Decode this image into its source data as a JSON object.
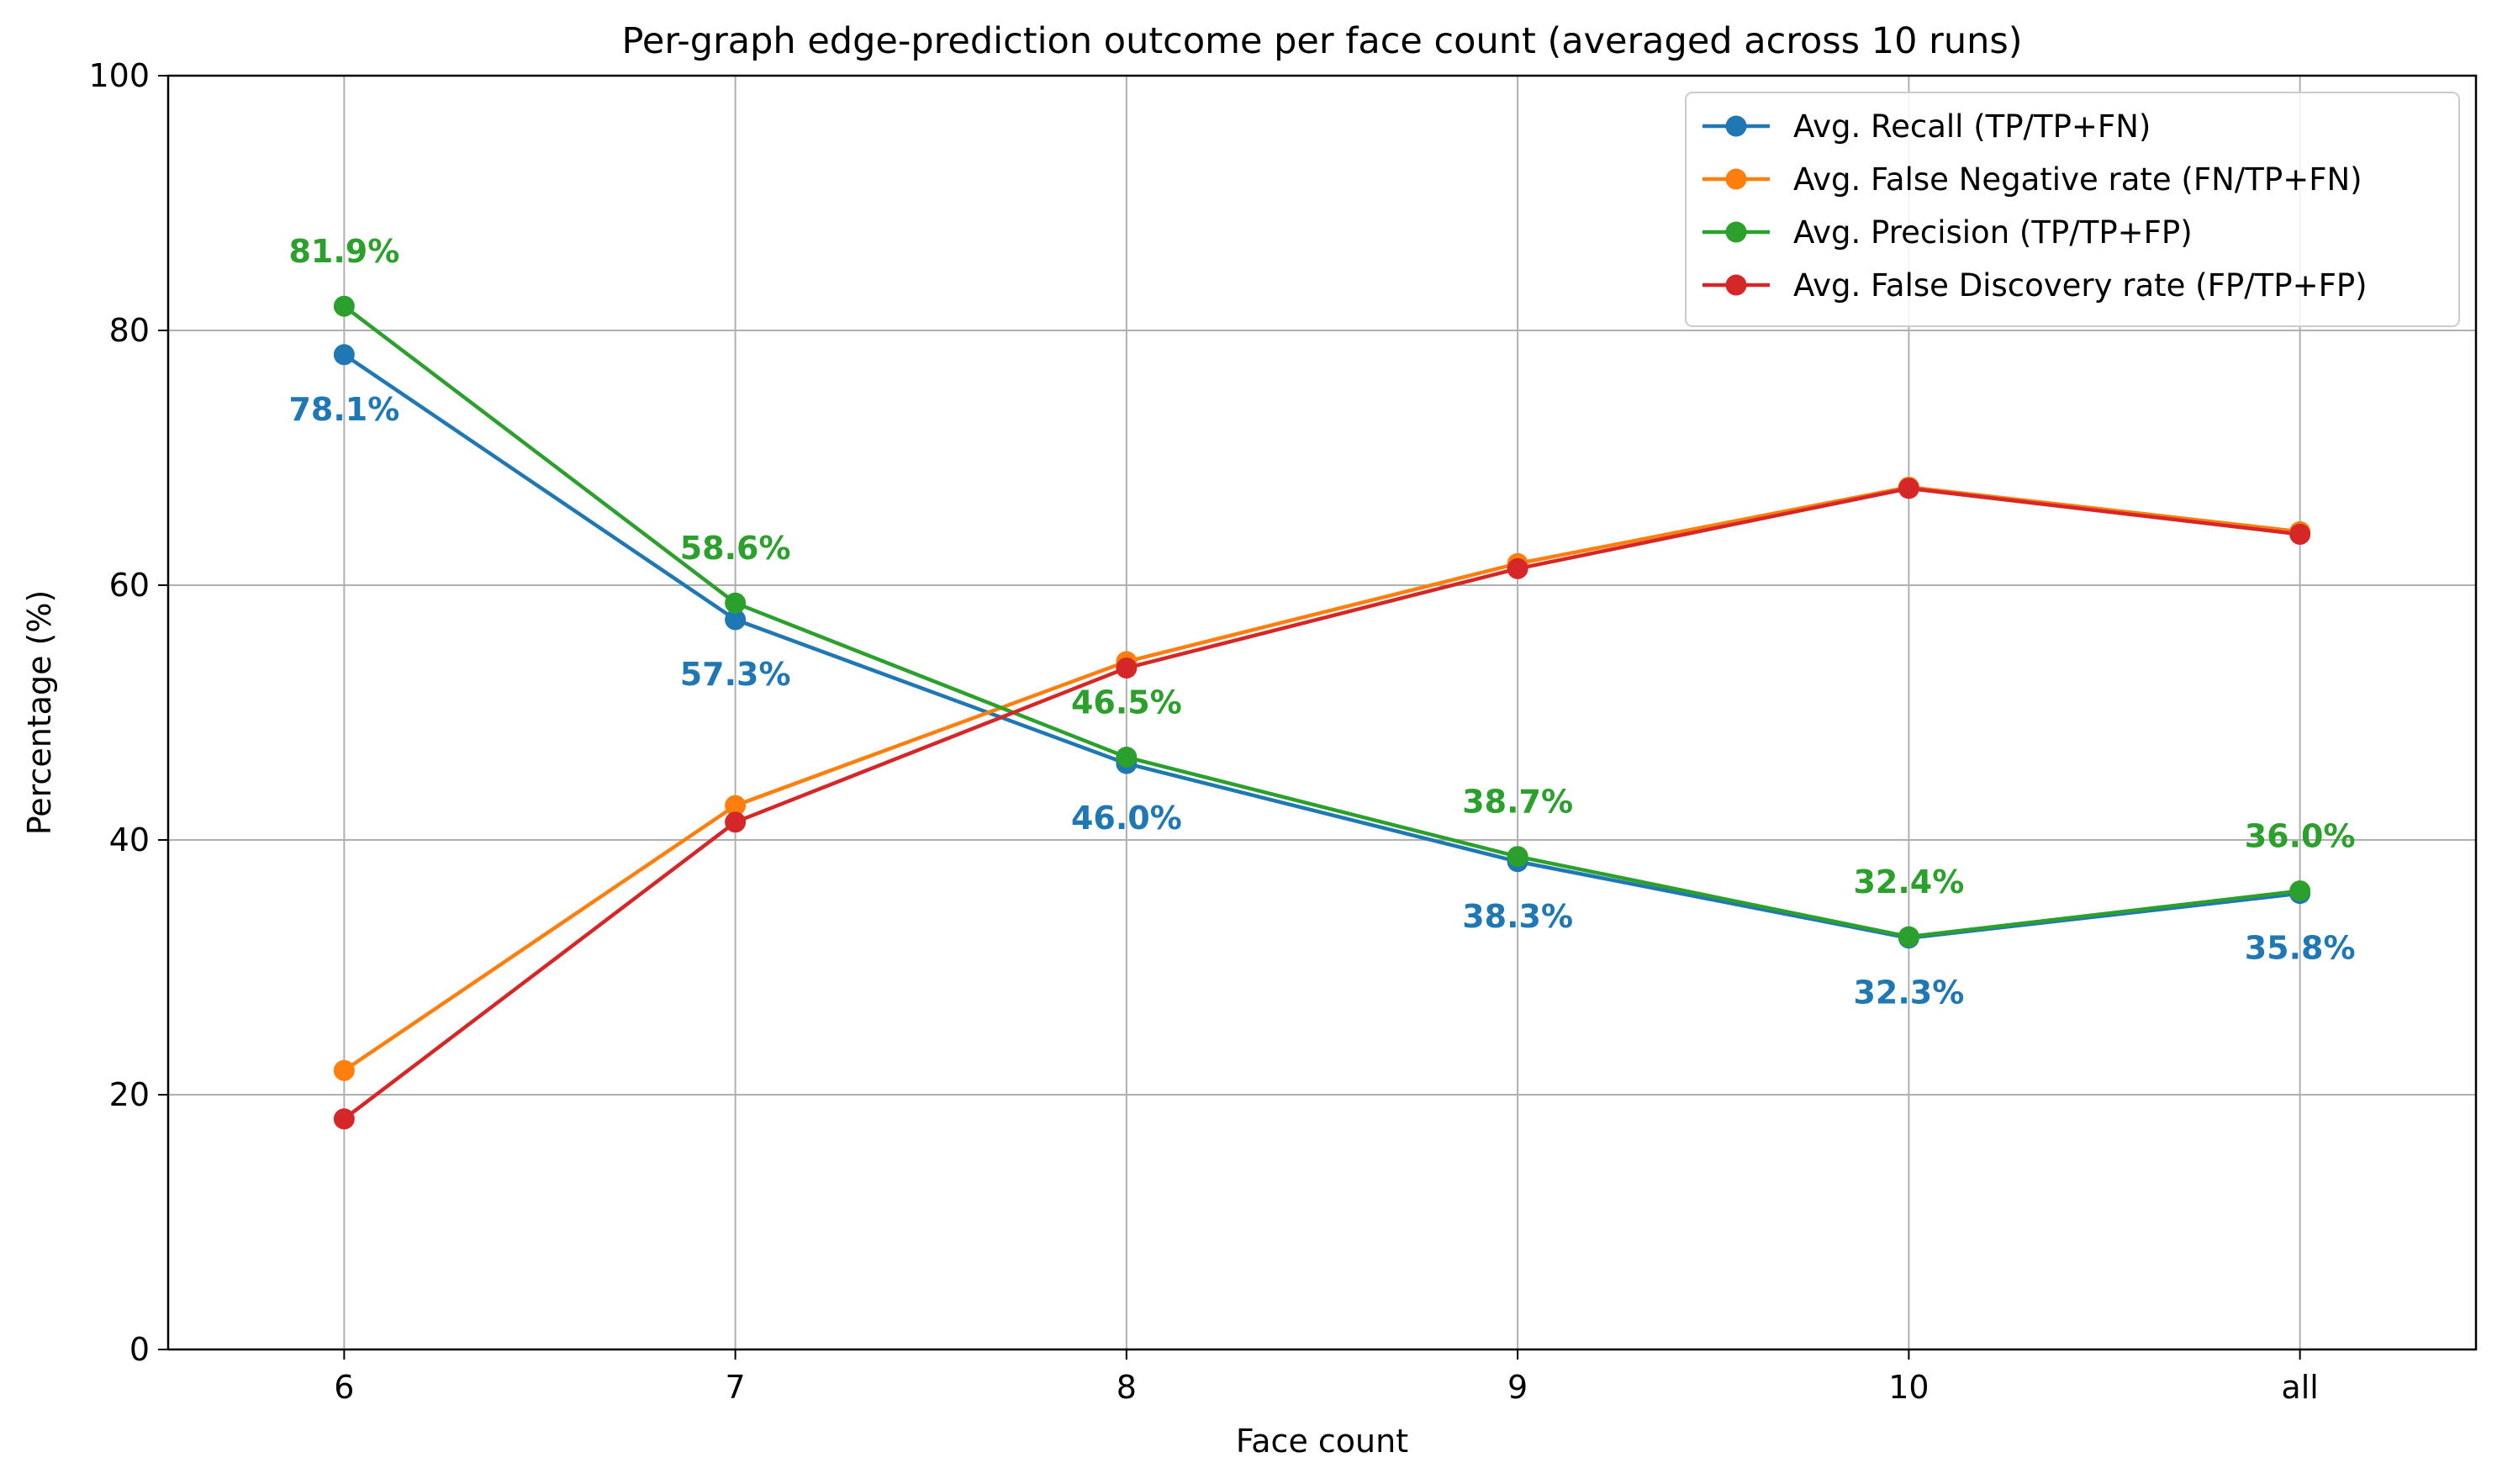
{
  "chart_data": {
    "type": "line",
    "title": "Per-graph edge-prediction outcome per face count (averaged across 10 runs)",
    "xlabel": "Face count",
    "ylabel": "Percentage (%)",
    "ylim": [
      0,
      100
    ],
    "yticks": [
      0,
      20,
      40,
      60,
      80,
      100
    ],
    "grid": true,
    "legend_position": "top-right",
    "categories": [
      "6",
      "7",
      "8",
      "9",
      "10",
      "all"
    ],
    "series": [
      {
        "name": "Avg. Recall (TP/TP+FN)",
        "color": "#1f77b4",
        "values": [
          78.1,
          57.3,
          46.0,
          38.3,
          32.3,
          35.8
        ],
        "labels": [
          "78.1%",
          "57.3%",
          "46.0%",
          "38.3%",
          "32.3%",
          "35.8%"
        ],
        "label_position": "below"
      },
      {
        "name": "Avg. False Negative rate (FN/TP+FN)",
        "color": "#ff7f0e",
        "values": [
          21.9,
          42.7,
          54.0,
          61.7,
          67.7,
          64.2
        ]
      },
      {
        "name": "Avg. Precision (TP/TP+FP)",
        "color": "#2ca02c",
        "values": [
          81.9,
          58.6,
          46.5,
          38.7,
          32.4,
          36.0
        ],
        "labels": [
          "81.9%",
          "58.6%",
          "46.5%",
          "38.7%",
          "32.4%",
          "36.0%"
        ],
        "label_position": "above"
      },
      {
        "name": "Avg. False Discovery rate (FP/TP+FP)",
        "color": "#d62728",
        "values": [
          18.1,
          41.4,
          53.5,
          61.3,
          67.6,
          64.0
        ]
      }
    ]
  }
}
